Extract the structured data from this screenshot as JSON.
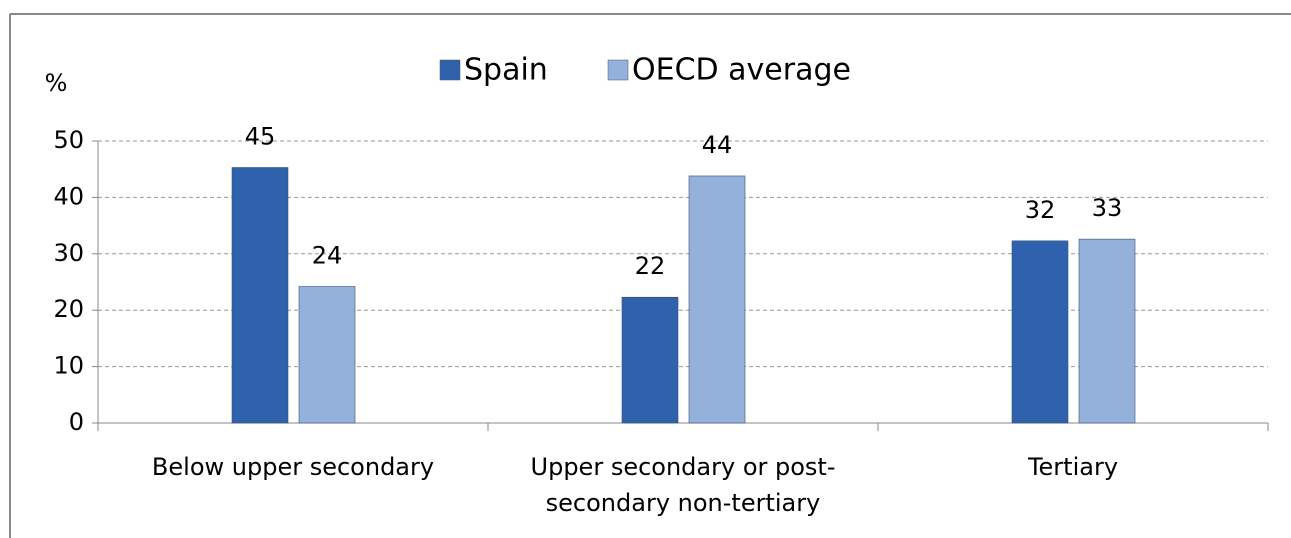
{
  "chart_data": {
    "type": "bar",
    "y_label": "%",
    "categories": [
      "Below upper secondary",
      "Upper secondary or post-secondary non-tertiary",
      "Tertiary"
    ],
    "series": [
      {
        "name": "Spain",
        "color": "#2f62ad",
        "values": [
          45.3,
          22.3,
          32.3
        ],
        "value_labels": [
          "45",
          "22",
          "32"
        ]
      },
      {
        "name": "OECD average",
        "color": "#93b1db",
        "values": [
          24.2,
          43.8,
          32.6
        ],
        "value_labels": [
          "24",
          "44",
          "33"
        ]
      }
    ],
    "ylim": [
      0,
      50
    ],
    "yticks": [
      0,
      10,
      20,
      30,
      40,
      50
    ],
    "grid": true,
    "legend": "top"
  }
}
